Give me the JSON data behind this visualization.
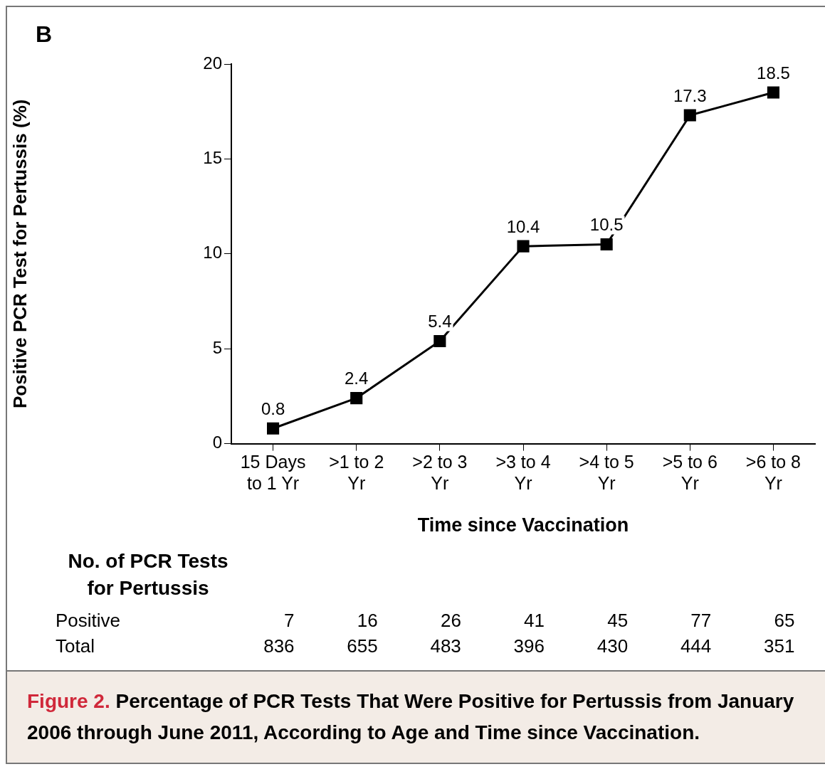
{
  "chart_data": [
    {
      "type": "line",
      "ylabel": "Positive PCR Test for Pertussis (%)",
      "xlabel": "Time since Vaccination",
      "annotations": [
        "B"
      ],
      "categories": [
        "15 Days to 1 Yr",
        ">1 to 2 Yr",
        ">2 to 3 Yr",
        ">3 to 4 Yr",
        ">4 to 5 Yr",
        ">5 to 6 Yr",
        ">6 to 8 Yr"
      ],
      "values": [
        0.8,
        2.4,
        5.4,
        10.4,
        10.5,
        17.3,
        18.5
      ],
      "color": "#000000",
      "ylim": [
        0,
        20
      ],
      "yticks": [
        0,
        5,
        10,
        15,
        20
      ],
      "grid": false,
      "legend": false,
      "marker": "square",
      "line_style": "solid",
      "data_labels": true
    },
    {
      "type": "other",
      "title": "No. of PCR Tests for Pertussis",
      "annotations": [
        "Positive",
        "7",
        "16",
        "26",
        "41",
        "45",
        "77",
        "65",
        "Total",
        "836",
        "655",
        "483",
        "396",
        "430",
        "444",
        "351",
        "Figure 2.",
        "Percentage of PCR Tests That Were Positive for Pertussis from January 2006 through June 2011, According to Age and Time since Vaccination."
      ]
    }
  ]
}
